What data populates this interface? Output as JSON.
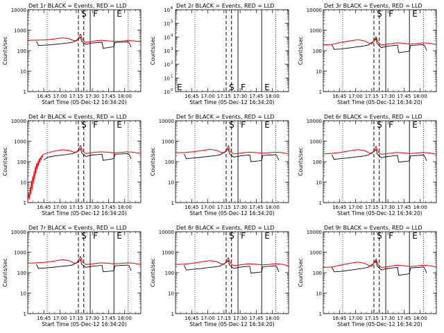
{
  "chart_data": {
    "type": "line",
    "layout": "3x3 grid of panels",
    "colors": {
      "events": "#000000",
      "lld": "#e00000"
    },
    "xlabel": "Start Time (05-Dec-12 16:34:20)",
    "ylabel": "Counts/sec",
    "x_tick_labels": [
      "16:45",
      "17:00",
      "17:15",
      "17:30",
      "17:45",
      "18:00"
    ],
    "x_ticks_minutes": [
      45,
      60,
      75,
      90,
      105,
      120
    ],
    "xlim_minutes_after_16:00": [
      30,
      135
    ],
    "y_scale": "log",
    "ylim": [
      1,
      10000
    ],
    "y_tick_labels": [
      "1",
      "10",
      "100",
      "1000",
      "10000"
    ],
    "flag_lines": {
      "dotted_minutes": [
        48,
        123
      ],
      "dashed_minutes": [
        77,
        82
      ],
      "solid_minutes": [
        88,
        110
      ],
      "letters": [
        {
          "text": "S",
          "minute": 79
        },
        {
          "text": "F",
          "minute": 90
        },
        {
          "text": "E",
          "minute": 112
        }
      ]
    },
    "panels": [
      {
        "title": "Det 1r BLACK = Events, RED = LLD",
        "lld": {
          "x": [
            30,
            38,
            46,
            55,
            62,
            68,
            72,
            75,
            77,
            79,
            81,
            84,
            88,
            93,
            98,
            104,
            110,
            116,
            122,
            128,
            135
          ],
          "y": [
            320,
            325,
            335,
            375,
            420,
            390,
            320,
            290,
            420,
            640,
            330,
            255,
            270,
            300,
            320,
            305,
            280,
            290,
            310,
            300,
            270
          ]
        },
        "events": {
          "x": [
            38,
            40,
            46,
            52,
            56,
            60,
            64,
            68,
            70,
            72,
            73,
            76,
            78,
            79,
            80,
            84,
            86,
            90,
            94,
            99,
            100,
            104,
            108,
            110,
            111,
            118,
            123,
            124,
            126
          ],
          "y": [
            290,
            180,
            185,
            195,
            205,
            215,
            225,
            240,
            250,
            260,
            280,
            330,
            400,
            460,
            290,
            200,
            215,
            235,
            245,
            255,
            130,
            140,
            150,
            160,
            250,
            260,
            270,
            250,
            150
          ]
        }
      },
      {
        "title": "Det 2r BLACK = Events, RED = LLD",
        "empty": true,
        "ylim": [
          1,
          1000000
        ],
        "y_tick_labels": [
          "10^0",
          "10^1",
          "10^2",
          "10^3",
          "10^4",
          "10^5",
          "10^6"
        ]
      },
      {
        "title": "Det 3r BLACK = Events, RED = LLD",
        "lld": {
          "x": [
            30,
            38,
            46,
            55,
            62,
            68,
            72,
            75,
            77,
            79,
            81,
            84,
            88,
            93,
            98,
            104,
            110,
            116,
            122,
            128,
            135
          ],
          "y": [
            190,
            200,
            250,
            300,
            340,
            300,
            240,
            210,
            300,
            480,
            250,
            190,
            200,
            220,
            240,
            230,
            210,
            220,
            240,
            230,
            200
          ]
        },
        "events": {
          "x": [
            38,
            40,
            46,
            52,
            56,
            60,
            64,
            68,
            70,
            72,
            73,
            76,
            78,
            79,
            80,
            84,
            86,
            90,
            94,
            99,
            100,
            104,
            108,
            110,
            111,
            118,
            123,
            124,
            126
          ],
          "y": [
            200,
            115,
            120,
            130,
            140,
            150,
            160,
            170,
            180,
            190,
            220,
            270,
            330,
            380,
            220,
            140,
            150,
            165,
            175,
            185,
            80,
            85,
            90,
            95,
            180,
            190,
            195,
            180,
            100
          ]
        }
      },
      {
        "title": "Det 4r BLACK = Events, RED = LLD",
        "lld_rise": {
          "x": [
            30,
            31,
            31.6,
            32.2,
            32.8,
            33.4,
            34,
            34.6,
            35.2,
            35.8,
            36.4,
            37,
            37.6,
            38.2,
            38.8,
            39.4,
            40,
            40.6,
            41.2,
            41.8,
            42.4,
            43,
            43.6,
            44.2,
            44.8
          ],
          "y": [
            1.2,
            3,
            1.5,
            6,
            2.5,
            12,
            4,
            20,
            8,
            35,
            14,
            60,
            25,
            85,
            40,
            110,
            60,
            140,
            90,
            170,
            120,
            200,
            160,
            230,
            210
          ]
        },
        "lld": {
          "x": [
            45,
            50,
            55,
            62,
            68,
            72,
            75,
            77,
            79,
            81,
            84,
            88,
            93,
            98,
            104,
            110,
            116,
            122,
            128,
            135
          ],
          "y": [
            230,
            280,
            330,
            380,
            360,
            300,
            280,
            380,
            620,
            320,
            250,
            270,
            290,
            300,
            290,
            270,
            280,
            300,
            290,
            250
          ]
        },
        "events": {
          "x": [
            45,
            48,
            52,
            56,
            60,
            64,
            68,
            70,
            72,
            73,
            76,
            78,
            79,
            80,
            84,
            86,
            90,
            94,
            99,
            100,
            104,
            108,
            110,
            111,
            118,
            123,
            124,
            126
          ],
          "y": [
            120,
            160,
            180,
            195,
            205,
            215,
            230,
            240,
            250,
            270,
            320,
            380,
            440,
            270,
            180,
            190,
            210,
            220,
            230,
            115,
            125,
            135,
            145,
            230,
            240,
            250,
            230,
            135
          ]
        }
      },
      {
        "title": "Det 5r BLACK = Events, RED = LLD",
        "lld": {
          "x": [
            30,
            38,
            46,
            55,
            62,
            68,
            72,
            75,
            77,
            79,
            81,
            84,
            88,
            93,
            98,
            104,
            110,
            116,
            122,
            128,
            135
          ],
          "y": [
            270,
            280,
            300,
            350,
            400,
            360,
            290,
            260,
            360,
            600,
            300,
            240,
            250,
            270,
            290,
            280,
            260,
            270,
            290,
            280,
            240
          ]
        },
        "events": {
          "x": [
            38,
            40,
            46,
            52,
            56,
            60,
            64,
            68,
            70,
            72,
            73,
            76,
            78,
            79,
            80,
            84,
            86,
            90,
            94,
            99,
            100,
            104,
            108,
            110,
            111,
            118,
            123,
            124,
            126
          ],
          "y": [
            240,
            140,
            150,
            160,
            170,
            180,
            190,
            200,
            210,
            220,
            250,
            300,
            360,
            420,
            250,
            165,
            175,
            190,
            200,
            210,
            100,
            105,
            110,
            115,
            200,
            210,
            220,
            200,
            115
          ]
        }
      },
      {
        "title": "Det 6r BLACK = Events, RED = LLD",
        "lld": {
          "x": [
            30,
            38,
            46,
            55,
            62,
            68,
            72,
            75,
            77,
            79,
            81,
            84,
            88,
            93,
            98,
            104,
            110,
            116,
            122,
            128,
            135
          ],
          "y": [
            240,
            255,
            280,
            340,
            390,
            350,
            280,
            250,
            350,
            560,
            290,
            230,
            240,
            260,
            280,
            270,
            250,
            260,
            280,
            270,
            230
          ]
        },
        "events": {
          "x": [
            38,
            40,
            46,
            52,
            56,
            60,
            64,
            68,
            70,
            72,
            73,
            76,
            78,
            79,
            80,
            84,
            86,
            90,
            94,
            99,
            100,
            104,
            108,
            110,
            111,
            118,
            123,
            124,
            126
          ],
          "y": [
            220,
            130,
            140,
            150,
            160,
            170,
            180,
            190,
            200,
            210,
            240,
            290,
            350,
            400,
            240,
            155,
            165,
            180,
            190,
            200,
            95,
            100,
            105,
            110,
            190,
            200,
            210,
            190,
            110
          ]
        }
      },
      {
        "title": "Det 7r BLACK = Events, RED = LLD",
        "lld": {
          "x": [
            30,
            38,
            46,
            55,
            62,
            68,
            72,
            75,
            77,
            79,
            81,
            84,
            88,
            93,
            98,
            104,
            110,
            116,
            122,
            128,
            135
          ],
          "y": [
            290,
            300,
            320,
            370,
            430,
            390,
            310,
            280,
            400,
            620,
            320,
            250,
            260,
            280,
            300,
            290,
            270,
            280,
            300,
            290,
            250
          ]
        },
        "events": {
          "x": [
            38,
            40,
            46,
            52,
            56,
            60,
            64,
            68,
            70,
            72,
            73,
            76,
            78,
            79,
            80,
            84,
            86,
            90,
            94,
            99,
            100,
            104,
            108,
            110,
            111,
            118,
            123,
            124,
            126
          ],
          "y": [
            260,
            160,
            170,
            180,
            190,
            200,
            210,
            220,
            230,
            240,
            270,
            320,
            380,
            440,
            260,
            180,
            190,
            205,
            215,
            225,
            110,
            115,
            120,
            125,
            215,
            225,
            235,
            215,
            125
          ]
        }
      },
      {
        "title": "Det 8r BLACK = Events, RED = LLD",
        "lld": {
          "x": [
            30,
            38,
            46,
            55,
            62,
            68,
            72,
            75,
            77,
            79,
            81,
            84,
            88,
            93,
            98,
            104,
            110,
            116,
            122,
            128,
            135
          ],
          "y": [
            250,
            260,
            290,
            340,
            390,
            350,
            280,
            250,
            350,
            540,
            280,
            220,
            230,
            250,
            270,
            260,
            240,
            250,
            270,
            260,
            220
          ]
        },
        "events": {
          "x": [
            38,
            40,
            46,
            52,
            56,
            60,
            64,
            68,
            70,
            72,
            73,
            76,
            78,
            79,
            80,
            84,
            86,
            90,
            94,
            99,
            100,
            104,
            108,
            110,
            111,
            118,
            123,
            124,
            126
          ],
          "y": [
            230,
            135,
            145,
            155,
            165,
            175,
            185,
            195,
            205,
            215,
            245,
            290,
            350,
            400,
            240,
            160,
            170,
            185,
            195,
            205,
            95,
            100,
            105,
            110,
            195,
            205,
            215,
            195,
            110
          ]
        }
      },
      {
        "title": "Det 9r BLACK = Events, RED = LLD",
        "lld": {
          "x": [
            30,
            38,
            46,
            55,
            62,
            68,
            72,
            75,
            77,
            79,
            81,
            84,
            88,
            93,
            98,
            104,
            110,
            116,
            122,
            128,
            135
          ],
          "y": [
            180,
            190,
            230,
            290,
            330,
            290,
            230,
            200,
            290,
            460,
            240,
            180,
            190,
            210,
            230,
            220,
            200,
            210,
            230,
            220,
            190
          ]
        },
        "events": {
          "x": [
            38,
            40,
            46,
            52,
            56,
            60,
            64,
            68,
            70,
            72,
            73,
            76,
            78,
            79,
            80,
            84,
            86,
            90,
            94,
            99,
            100,
            104,
            108,
            110,
            111,
            118,
            123,
            124,
            126
          ],
          "y": [
            190,
            110,
            115,
            125,
            135,
            145,
            155,
            165,
            175,
            185,
            210,
            260,
            320,
            370,
            210,
            135,
            145,
            160,
            170,
            180,
            75,
            80,
            85,
            90,
            170,
            180,
            190,
            170,
            95
          ]
        }
      }
    ]
  }
}
